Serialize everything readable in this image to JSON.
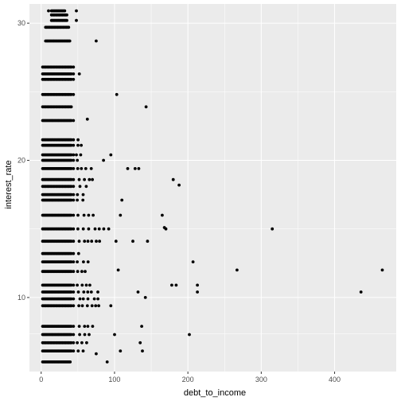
{
  "chart_data": {
    "type": "scatter",
    "title": "",
    "xlabel": "debt_to_income",
    "ylabel": "interest_rate",
    "xlim": [
      -16,
      484
    ],
    "ylim": [
      4.6,
      31.4
    ],
    "x_ticks": [
      0,
      100,
      200,
      300,
      400
    ],
    "y_ticks": [
      10,
      20,
      30
    ],
    "x_tick_labels": [
      "0",
      "100",
      "200",
      "300",
      "400"
    ],
    "y_tick_labels": [
      "10",
      "20",
      "30"
    ],
    "grid": true,
    "panel_color": "#ebebeb",
    "point_color": "#000000",
    "band_rates": [
      5.3,
      6.1,
      6.7,
      7.3,
      7.9,
      9.4,
      9.9,
      10.4,
      10.9,
      11.9,
      12.6,
      13.2,
      14.1,
      15.0,
      16.0,
      17.1,
      17.5,
      18.1,
      18.6,
      19.4,
      20.0,
      20.4,
      21.1,
      21.5,
      22.9,
      23.9,
      24.8,
      25.9,
      26.3,
      26.8,
      28.7,
      29.7,
      30.2,
      30.6,
      30.9
    ],
    "band_xmax": [
      40,
      60,
      65,
      68,
      72,
      80,
      82,
      82,
      72,
      67,
      68,
      55,
      82,
      88,
      75,
      60,
      58,
      63,
      75,
      70,
      50,
      54,
      55,
      55,
      45,
      42,
      45,
      45,
      55,
      47,
      40,
      38,
      35,
      35,
      32
    ],
    "outliers": [
      [
        10,
        30.9
      ],
      [
        48,
        30.9
      ],
      [
        48,
        30.2
      ],
      [
        75,
        28.7
      ],
      [
        103,
        24.8
      ],
      [
        143,
        23.9
      ],
      [
        63,
        23.0
      ],
      [
        95,
        20.4
      ],
      [
        85,
        20.0
      ],
      [
        118,
        19.4
      ],
      [
        128,
        19.4
      ],
      [
        133,
        19.4
      ],
      [
        180,
        18.6
      ],
      [
        188,
        18.2
      ],
      [
        110,
        17.1
      ],
      [
        108,
        16.0
      ],
      [
        165,
        16.0
      ],
      [
        170,
        15.0
      ],
      [
        168,
        15.1
      ],
      [
        315,
        15.0
      ],
      [
        92,
        15.0
      ],
      [
        102,
        14.1
      ],
      [
        125,
        14.1
      ],
      [
        145,
        14.1
      ],
      [
        207,
        12.6
      ],
      [
        267,
        12.0
      ],
      [
        105,
        12.0
      ],
      [
        465,
        12.0
      ],
      [
        178,
        10.9
      ],
      [
        184,
        10.9
      ],
      [
        213,
        10.9
      ],
      [
        213,
        10.4
      ],
      [
        132,
        10.4
      ],
      [
        142,
        10.0
      ],
      [
        436,
        10.4
      ],
      [
        95,
        9.4
      ],
      [
        100,
        7.3
      ],
      [
        202,
        7.3
      ],
      [
        137,
        7.9
      ],
      [
        135,
        6.7
      ],
      [
        108,
        6.1
      ],
      [
        138,
        6.1
      ],
      [
        90,
        5.3
      ],
      [
        75,
        5.9
      ]
    ]
  }
}
